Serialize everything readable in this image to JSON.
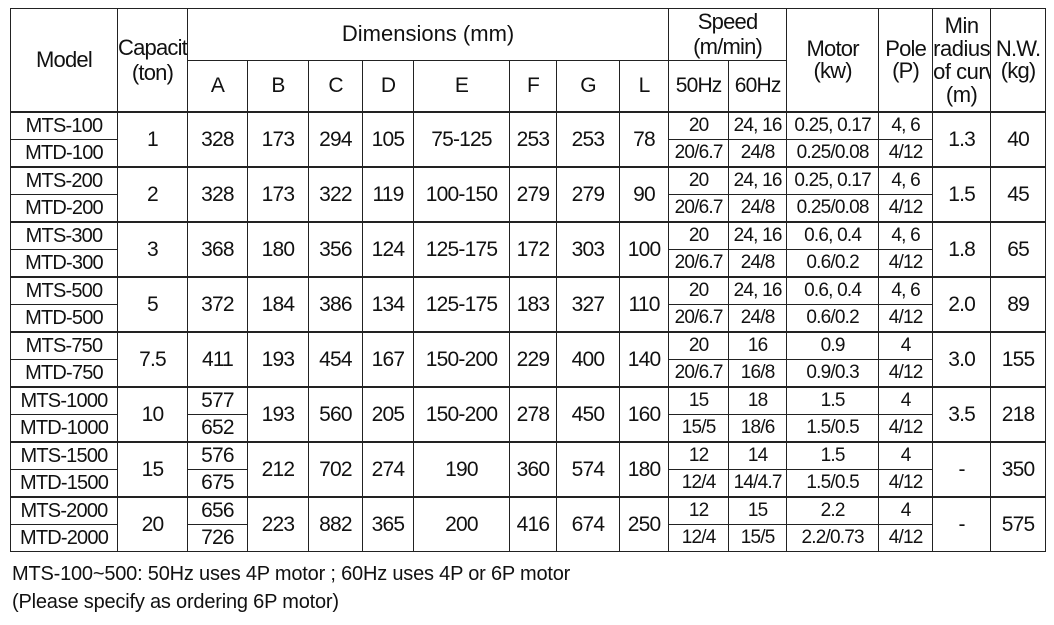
{
  "header": {
    "model": "Model",
    "capacity": [
      "Capacity",
      "(ton)"
    ],
    "dimensions": "Dimensions (mm)",
    "dims": [
      "A",
      "B",
      "C",
      "D",
      "E",
      "F",
      "G",
      "L"
    ],
    "speed": [
      "Speed",
      "(m/min)"
    ],
    "speed_cols": [
      "50Hz",
      "60Hz"
    ],
    "motor": [
      "Motor",
      "(kw)"
    ],
    "pole": [
      "Pole",
      "(P)"
    ],
    "radius": [
      "Min",
      "radius",
      "of curve",
      "(m)"
    ],
    "nw": [
      "N.W.",
      "(kg)"
    ]
  },
  "rows": [
    {
      "models": [
        "MTS-100",
        "MTD-100"
      ],
      "capacity": "1",
      "dims": [
        "328",
        "173",
        "294",
        "105",
        "75-125",
        "253",
        "253",
        "78"
      ],
      "speed_50hz": [
        "20",
        "20/6.7"
      ],
      "speed_60hz": [
        "24, 16",
        "24/8"
      ],
      "motor": [
        "0.25, 0.17",
        "0.25/0.08"
      ],
      "pole": [
        "4, 6",
        "4/12"
      ],
      "radius": "1.3",
      "nw": "40"
    },
    {
      "models": [
        "MTS-200",
        "MTD-200"
      ],
      "capacity": "2",
      "dims": [
        "328",
        "173",
        "322",
        "119",
        "100-150",
        "279",
        "279",
        "90"
      ],
      "speed_50hz": [
        "20",
        "20/6.7"
      ],
      "speed_60hz": [
        "24, 16",
        "24/8"
      ],
      "motor": [
        "0.25, 0.17",
        "0.25/0.08"
      ],
      "pole": [
        "4, 6",
        "4/12"
      ],
      "radius": "1.5",
      "nw": "45"
    },
    {
      "models": [
        "MTS-300",
        "MTD-300"
      ],
      "capacity": "3",
      "dims": [
        "368",
        "180",
        "356",
        "124",
        "125-175",
        "172",
        "303",
        "100"
      ],
      "speed_50hz": [
        "20",
        "20/6.7"
      ],
      "speed_60hz": [
        "24, 16",
        "24/8"
      ],
      "motor": [
        "0.6, 0.4",
        "0.6/0.2"
      ],
      "pole": [
        "4, 6",
        "4/12"
      ],
      "radius": "1.8",
      "nw": "65"
    },
    {
      "models": [
        "MTS-500",
        "MTD-500"
      ],
      "capacity": "5",
      "dims": [
        "372",
        "184",
        "386",
        "134",
        "125-175",
        "183",
        "327",
        "110"
      ],
      "speed_50hz": [
        "20",
        "20/6.7"
      ],
      "speed_60hz": [
        "24, 16",
        "24/8"
      ],
      "motor": [
        "0.6, 0.4",
        "0.6/0.2"
      ],
      "pole": [
        "4, 6",
        "4/12"
      ],
      "radius": "2.0",
      "nw": "89"
    },
    {
      "models": [
        "MTS-750",
        "MTD-750"
      ],
      "capacity": "7.5",
      "dims": [
        "411",
        "193",
        "454",
        "167",
        "150-200",
        "229",
        "400",
        "140"
      ],
      "speed_50hz": [
        "20",
        "20/6.7"
      ],
      "speed_60hz": [
        "16",
        "16/8"
      ],
      "motor": [
        "0.9",
        "0.9/0.3"
      ],
      "pole": [
        "4",
        "4/12"
      ],
      "radius": "3.0",
      "nw": "155"
    },
    {
      "models": [
        "MTS-1000",
        "MTD-1000"
      ],
      "capacity": "10",
      "dims": [
        [
          "577",
          "652"
        ],
        "193",
        "560",
        "205",
        "150-200",
        "278",
        "450",
        "160"
      ],
      "speed_50hz": [
        "15",
        "15/5"
      ],
      "speed_60hz": [
        "18",
        "18/6"
      ],
      "motor": [
        "1.5",
        "1.5/0.5"
      ],
      "pole": [
        "4",
        "4/12"
      ],
      "radius": "3.5",
      "nw": "218"
    },
    {
      "models": [
        "MTS-1500",
        "MTD-1500"
      ],
      "capacity": "15",
      "dims": [
        [
          "576",
          "675"
        ],
        "212",
        "702",
        "274",
        "190",
        "360",
        "574",
        "180"
      ],
      "speed_50hz": [
        "12",
        "12/4"
      ],
      "speed_60hz": [
        "14",
        "14/4.7"
      ],
      "motor": [
        "1.5",
        "1.5/0.5"
      ],
      "pole": [
        "4",
        "4/12"
      ],
      "radius": "-",
      "nw": "350"
    },
    {
      "models": [
        "MTS-2000",
        "MTD-2000"
      ],
      "capacity": "20",
      "dims": [
        [
          "656",
          "726"
        ],
        "223",
        "882",
        "365",
        "200",
        "416",
        "674",
        "250"
      ],
      "speed_50hz": [
        "12",
        "12/4"
      ],
      "speed_60hz": [
        "15",
        "15/5"
      ],
      "motor": [
        "2.2",
        "2.2/0.73"
      ],
      "pole": [
        "4",
        "4/12"
      ],
      "radius": "-",
      "nw": "575"
    }
  ],
  "notes": [
    "MTS-100~500: 50Hz uses 4P motor ; 60Hz uses 4P or 6P motor",
    "(Please specify as ordering 6P motor)"
  ]
}
